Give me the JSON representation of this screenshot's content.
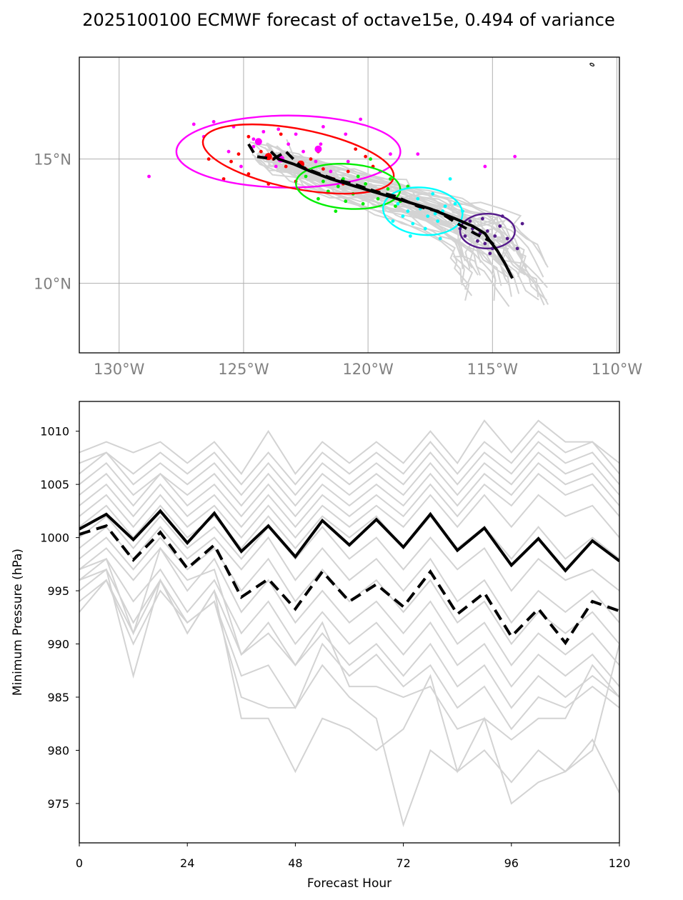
{
  "title": "2025100100 ECMWF forecast of octave15e, 0.494 of variance",
  "chart_data": [
    {
      "type": "scatter",
      "subtype": "track-map",
      "x_ticks": [
        "130°W",
        "125°W",
        "120°W",
        "115°W",
        "110°W"
      ],
      "y_ticks": [
        "10°N",
        "15°N"
      ],
      "xlim": [
        -131.6,
        -109.9
      ],
      "ylim": [
        7.2,
        19.1
      ],
      "grid": true,
      "ensemble_mean_track": {
        "lon": [
          -123.9,
          -123.6,
          -123.0,
          -122.3,
          -121.5,
          -120.5,
          -119.5,
          -118.5,
          -117.5,
          -116.5,
          -115.8,
          -115.3,
          -115.1,
          -114.8,
          -114.5,
          -114.2
        ],
        "lat": [
          15.3,
          15.0,
          14.8,
          14.5,
          14.2,
          13.9,
          13.6,
          13.3,
          13.0,
          12.6,
          12.3,
          12.0,
          11.7,
          11.3,
          10.8,
          10.2
        ]
      },
      "control_track": {
        "lon": [
          -124.8,
          -124.5,
          -123.8,
          -123.3,
          -123.0,
          -122.7,
          -122.2,
          -121.4,
          -120.6,
          -119.7,
          -118.9,
          -118.0,
          -117.2,
          -116.4,
          -115.7,
          -115.1,
          -114.9
        ],
        "lat": [
          15.6,
          15.1,
          15.0,
          15.3,
          15.0,
          14.7,
          14.5,
          14.2,
          14.0,
          13.7,
          13.5,
          13.1,
          12.9,
          12.4,
          12.0,
          11.7,
          11.5
        ]
      },
      "ellipses": [
        {
          "color": "#ff00ff",
          "cx": -123.2,
          "cy": 15.3,
          "rx": 4.5,
          "ry": 1.45,
          "angle": 0
        },
        {
          "color": "#ff0000",
          "cx": -122.8,
          "cy": 15.0,
          "rx": 3.9,
          "ry": 1.2,
          "angle": -11
        },
        {
          "color": "#00ee00",
          "cx": -120.8,
          "cy": 13.9,
          "rx": 2.1,
          "ry": 0.9,
          "angle": -4
        },
        {
          "color": "#00ffff",
          "cx": -117.8,
          "cy": 12.9,
          "rx": 1.6,
          "ry": 0.95,
          "angle": -6
        },
        {
          "color": "#551a8b",
          "cx": -115.2,
          "cy": 12.1,
          "rx": 1.1,
          "ry": 0.7,
          "angle": 0
        }
      ],
      "point_groups": [
        {
          "color": "#ff00ff",
          "points": [
            [
              -126.2,
              16.5
            ],
            [
              -125.4,
              16.3
            ],
            [
              -124.2,
              16.1
            ],
            [
              -123.6,
              16.2
            ],
            [
              -122.9,
              16.0
            ],
            [
              -121.8,
              16.3
            ],
            [
              -120.9,
              16.0
            ],
            [
              -120.3,
              16.6
            ],
            [
              -119.1,
              15.2
            ],
            [
              -118.0,
              15.2
            ],
            [
              -125.6,
              15.3
            ],
            [
              -124.6,
              15.5
            ],
            [
              -124.1,
              15.1
            ],
            [
              -123.7,
              14.7
            ],
            [
              -122.6,
              15.3
            ],
            [
              -122.1,
              14.9
            ],
            [
              -121.5,
              14.5
            ],
            [
              -120.8,
              14.9
            ],
            [
              -126.6,
              15.9
            ],
            [
              -127.0,
              16.4
            ],
            [
              -128.8,
              14.3
            ],
            [
              -115.3,
              14.7
            ],
            [
              -114.1,
              15.1
            ],
            [
              -125.1,
              14.7
            ],
            [
              -123.2,
              15.6
            ],
            [
              -121.9,
              15.6
            ],
            [
              -124.6,
              15.8
            ]
          ]
        },
        {
          "color": "#ff0000",
          "points": [
            [
              -126.4,
              15.0
            ],
            [
              -125.5,
              14.9
            ],
            [
              -125.2,
              15.2
            ],
            [
              -124.8,
              14.4
            ],
            [
              -124.3,
              15.3
            ],
            [
              -123.8,
              15.0
            ],
            [
              -123.3,
              14.7
            ],
            [
              -122.9,
              14.1
            ],
            [
              -122.3,
              15.0
            ],
            [
              -121.8,
              14.6
            ],
            [
              -121.4,
              14.2
            ],
            [
              -120.8,
              14.5
            ],
            [
              -120.1,
              15.1
            ],
            [
              -119.8,
              14.7
            ],
            [
              -124.0,
              14.0
            ],
            [
              -122.5,
              14.6
            ],
            [
              -121.0,
              14.0
            ],
            [
              -125.8,
              14.2
            ],
            [
              -124.8,
              15.9
            ],
            [
              -123.5,
              16.0
            ],
            [
              -122.0,
              15.3
            ],
            [
              -120.5,
              15.4
            ]
          ]
        },
        {
          "color": "#00ee00",
          "points": [
            [
              -122.5,
              14.3
            ],
            [
              -121.8,
              14.1
            ],
            [
              -121.2,
              13.9
            ],
            [
              -120.6,
              13.6
            ],
            [
              -120.1,
              14.0
            ],
            [
              -119.6,
              13.4
            ],
            [
              -119.2,
              13.8
            ],
            [
              -118.7,
              13.3
            ],
            [
              -121.6,
              13.7
            ],
            [
              -120.9,
              13.3
            ],
            [
              -120.2,
              13.2
            ],
            [
              -119.8,
              13.7
            ],
            [
              -121.3,
              12.9
            ],
            [
              -122.0,
              13.4
            ],
            [
              -119.5,
              14.5
            ],
            [
              -119.1,
              14.2
            ],
            [
              -118.4,
              13.9
            ],
            [
              -120.4,
              14.3
            ],
            [
              -121.0,
              14.2
            ],
            [
              -122.8,
              13.8
            ],
            [
              -119.9,
              15.0
            ],
            [
              -118.9,
              13.1
            ]
          ]
        },
        {
          "color": "#00ffff",
          "points": [
            [
              -118.8,
              13.2
            ],
            [
              -118.4,
              12.9
            ],
            [
              -117.9,
              13.0
            ],
            [
              -117.6,
              12.7
            ],
            [
              -117.3,
              12.8
            ],
            [
              -117.0,
              12.9
            ],
            [
              -116.7,
              12.6
            ],
            [
              -118.2,
              12.4
            ],
            [
              -117.7,
              12.2
            ],
            [
              -117.2,
              12.5
            ],
            [
              -116.5,
              13.2
            ],
            [
              -118.6,
              12.7
            ],
            [
              -116.9,
              13.1
            ],
            [
              -118.0,
              13.4
            ],
            [
              -117.4,
              13.6
            ],
            [
              -116.2,
              12.9
            ],
            [
              -119.0,
              12.5
            ],
            [
              -116.7,
              14.2
            ],
            [
              -118.3,
              11.9
            ],
            [
              -117.1,
              11.8
            ]
          ]
        },
        {
          "color": "#551a8b",
          "points": [
            [
              -115.8,
              12.2
            ],
            [
              -115.5,
              12.0
            ],
            [
              -115.2,
              12.1
            ],
            [
              -114.9,
              11.9
            ],
            [
              -115.6,
              11.7
            ],
            [
              -115.3,
              11.6
            ],
            [
              -114.7,
              12.3
            ],
            [
              -116.1,
              11.9
            ],
            [
              -115.0,
              11.4
            ],
            [
              -114.4,
              11.8
            ],
            [
              -114.0,
              11.4
            ],
            [
              -113.8,
              12.4
            ],
            [
              -115.9,
              12.5
            ],
            [
              -115.4,
              12.6
            ],
            [
              -116.3,
              12.2
            ],
            [
              -114.6,
              12.7
            ],
            [
              -115.1,
              11.2
            ]
          ]
        }
      ],
      "large_markers": [
        {
          "color": "#ff00ff",
          "lon": -124.4,
          "lat": 15.7
        },
        {
          "color": "#ff00ff",
          "lon": -123.5,
          "lat": 15.0
        },
        {
          "color": "#ff00ff",
          "lon": -122.0,
          "lat": 15.4
        },
        {
          "color": "#ff0000",
          "lon": -124.0,
          "lat": 15.1
        },
        {
          "color": "#ff0000",
          "lon": -122.7,
          "lat": 14.8
        }
      ],
      "small_island": {
        "lon": -111.0,
        "lat": 18.8
      }
    },
    {
      "type": "line",
      "xlabel": "Forecast Hour",
      "ylabel": "Minimum Pressure (hPa)",
      "xlim": [
        0,
        120
      ],
      "ylim": [
        971.3,
        1012.8
      ],
      "x_ticks": [
        0,
        24,
        48,
        72,
        96,
        120
      ],
      "y_ticks": [
        975,
        980,
        985,
        990,
        995,
        1000,
        1005,
        1010
      ],
      "x": [
        0,
        6,
        12,
        18,
        24,
        30,
        36,
        42,
        48,
        54,
        60,
        66,
        72,
        78,
        84,
        90,
        96,
        102,
        108,
        114,
        120
      ],
      "series": [
        {
          "name": "ensemble-mean",
          "style": "solid",
          "color": "#000000",
          "values": [
            1000.8,
            1002.2,
            999.8,
            1002.5,
            999.5,
            1002.3,
            998.7,
            1001.1,
            998.2,
            1001.6,
            999.3,
            1001.7,
            999.1,
            1002.2,
            998.8,
            1000.9,
            997.4,
            999.9,
            996.9,
            999.7,
            997.8
          ]
        },
        {
          "name": "control",
          "style": "dashed",
          "color": "#000000",
          "values": [
            1000.3,
            1001.1,
            997.9,
            1000.5,
            997.1,
            999.3,
            994.4,
            996.1,
            993.3,
            996.8,
            994.0,
            995.6,
            993.5,
            996.8,
            992.8,
            994.8,
            990.7,
            993.3,
            990.1,
            994.0,
            993.1
          ]
        }
      ],
      "members": [
        [
          1008,
          1009,
          1008,
          1009,
          1007,
          1009,
          1006,
          1010,
          1006,
          1009,
          1007,
          1009,
          1007,
          1010,
          1007,
          1011,
          1008,
          1011,
          1009,
          1009,
          1007
        ],
        [
          1007,
          1008,
          1006,
          1008,
          1006,
          1008,
          1005,
          1008,
          1005,
          1008,
          1006,
          1008,
          1006,
          1009,
          1006,
          1009,
          1007,
          1010,
          1008,
          1009,
          1006
        ],
        [
          1006,
          1008,
          1005,
          1007,
          1005,
          1007,
          1004,
          1007,
          1004,
          1007,
          1005,
          1007,
          1005,
          1008,
          1005,
          1008,
          1006,
          1009,
          1007,
          1008,
          1005
        ],
        [
          1005,
          1007,
          1004,
          1006,
          1004,
          1006,
          1003,
          1006,
          1003,
          1006,
          1004,
          1006,
          1004,
          1007,
          1004,
          1007,
          1005,
          1008,
          1006,
          1007,
          1004
        ],
        [
          1004,
          1006,
          1003,
          1006,
          1003,
          1005,
          1002,
          1005,
          1002,
          1005,
          1003,
          1005,
          1003,
          1006,
          1003,
          1006,
          1004,
          1007,
          1005,
          1006,
          1003
        ],
        [
          1003,
          1005,
          1002,
          1005,
          1002,
          1004,
          1001,
          1004,
          1001,
          1004,
          1002,
          1004,
          1002,
          1005,
          1002,
          1005,
          1003,
          1006,
          1004,
          1005,
          1002
        ],
        [
          1002,
          1004,
          1001,
          1004,
          1001,
          1003,
          1000,
          1003,
          1000,
          1003,
          1001,
          1003,
          1001,
          1004,
          1001,
          1004,
          1001,
          1004,
          1002,
          1003,
          1000
        ],
        [
          1001,
          1003,
          1000,
          1003,
          1000,
          1002,
          999,
          1002,
          999,
          1002,
          1000,
          1002,
          999,
          1002,
          999,
          1001,
          998,
          1001,
          998,
          1000,
          998
        ],
        [
          1000,
          1002,
          999,
          1002,
          999,
          1001,
          998,
          1001,
          998,
          1001,
          998,
          1000,
          997,
          1000,
          997,
          999,
          995,
          998,
          996,
          997,
          995
        ],
        [
          999,
          1001,
          998,
          1001,
          998,
          1000,
          997,
          1000,
          996,
          999,
          996,
          998,
          995,
          998,
          994,
          996,
          992,
          995,
          993,
          995,
          992
        ],
        [
          998,
          1000,
          997,
          1000,
          997,
          999,
          995,
          998,
          994,
          997,
          994,
          996,
          993,
          996,
          992,
          994,
          990,
          993,
          991,
          993,
          990
        ],
        [
          997,
          999,
          996,
          999,
          995,
          998,
          993,
          996,
          992,
          995,
          992,
          994,
          991,
          994,
          990,
          992,
          988,
          991,
          989,
          991,
          988
        ],
        [
          996,
          998,
          994,
          997,
          993,
          996,
          991,
          994,
          990,
          993,
          990,
          992,
          989,
          992,
          988,
          990,
          986,
          989,
          987,
          989,
          986
        ],
        [
          996,
          997,
          992,
          996,
          991,
          995,
          989,
          992,
          988,
          991,
          988,
          990,
          987,
          990,
          986,
          988,
          984,
          987,
          985,
          987,
          985
        ],
        [
          995,
          997,
          987,
          996,
          992,
          994,
          987,
          988,
          984,
          990,
          987,
          989,
          986,
          988,
          984,
          986,
          982,
          985,
          984,
          986,
          984
        ],
        [
          994,
          996,
          991,
          996,
          991,
          995,
          983,
          983,
          978,
          983,
          982,
          980,
          982,
          987,
          978,
          983,
          975,
          977,
          978,
          981,
          976
        ],
        [
          993,
          996,
          990,
          995,
          992,
          994,
          985,
          984,
          984,
          988,
          985,
          983,
          973,
          980,
          978,
          980,
          977,
          980,
          978,
          980,
          990
        ],
        [
          997,
          998,
          991,
          999,
          996,
          997,
          989,
          991,
          988,
          992,
          986,
          986,
          985,
          986,
          982,
          983,
          981,
          983,
          983,
          988,
          985
        ]
      ]
    }
  ]
}
